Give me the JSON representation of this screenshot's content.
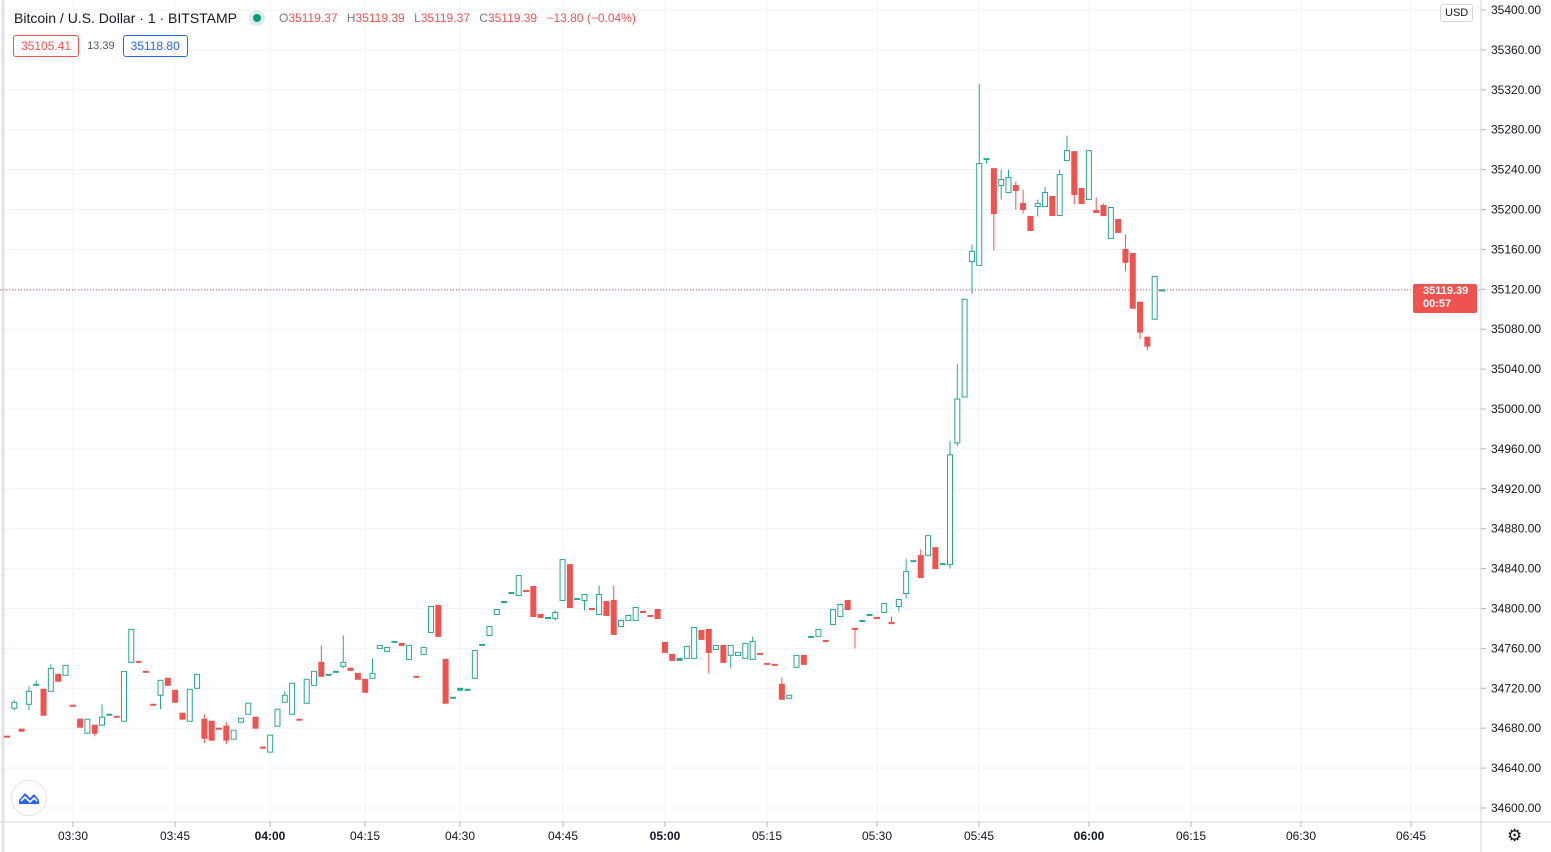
{
  "legend": {
    "symbol_title": "Bitcoin / U.S. Dollar · 1 · BITSTAMP",
    "open_label": "O",
    "open": "35119.37",
    "high_label": "H",
    "high": "35119.39",
    "low_label": "L",
    "low": "35119.37",
    "close_label": "C",
    "close": "35119.39",
    "change": "−13.80 (−0.04%)",
    "market_status": "open"
  },
  "trade": {
    "sell_price": "35105.41",
    "spread": "13.39",
    "buy_price": "35118.80"
  },
  "price_axis": {
    "currency": "USD",
    "last_price": "35119.39",
    "countdown": "00:57"
  },
  "colors": {
    "up": "#26a69a",
    "down": "#ef5350",
    "grid": "#f0f3fa",
    "ask": "#2962ff"
  },
  "icons": {
    "logo": "tradingview-cloud-icon",
    "settings": "gear-icon"
  },
  "chart_data": {
    "type": "candlestick",
    "title": "Bitcoin / U.S. Dollar · 1 · BITSTAMP",
    "ylim": [
      34580,
      35400
    ],
    "y_ticks": [
      "34600.00",
      "34640.00",
      "34680.00",
      "34720.00",
      "34760.00",
      "34800.00",
      "34840.00",
      "34880.00",
      "34920.00",
      "34960.00",
      "35000.00",
      "35040.00",
      "35080.00",
      "35120.00",
      "35160.00",
      "35200.00",
      "35240.00",
      "35280.00",
      "35320.00",
      "35360.00",
      "35400.00"
    ],
    "x_ticks": [
      {
        "label": "03:30",
        "bold": false
      },
      {
        "label": "03:45",
        "bold": false
      },
      {
        "label": "04:00",
        "bold": true
      },
      {
        "label": "04:15",
        "bold": false
      },
      {
        "label": "04:30",
        "bold": false
      },
      {
        "label": "04:45",
        "bold": false
      },
      {
        "label": "05:00",
        "bold": true
      },
      {
        "label": "05:15",
        "bold": false
      },
      {
        "label": "05:30",
        "bold": false
      },
      {
        "label": "05:45",
        "bold": false
      },
      {
        "label": "06:00",
        "bold": true
      },
      {
        "label": "06:15",
        "bold": false
      },
      {
        "label": "06:30",
        "bold": false
      },
      {
        "label": "06:45",
        "bold": false
      }
    ],
    "grid": true,
    "last_price_line": 35119.39,
    "ohlc": [
      [
        34672,
        34672,
        34671,
        34671
      ],
      [
        34700,
        34708,
        34698,
        34706
      ],
      [
        34679,
        34679,
        34677,
        34677
      ],
      [
        34704,
        34722,
        34698,
        34717
      ],
      [
        34723,
        34728,
        34723,
        34724
      ],
      [
        34719,
        34719,
        34693,
        34693
      ],
      [
        34717,
        34744,
        34717,
        34740
      ],
      [
        34734,
        34734,
        34727,
        34727
      ],
      [
        34733,
        34743,
        34733,
        34743
      ],
      [
        34703,
        34703,
        34702,
        34702
      ],
      [
        34689,
        34689,
        34681,
        34681
      ],
      [
        34675,
        34689,
        34675,
        34689
      ],
      [
        34683,
        34683,
        34672,
        34675
      ],
      [
        34683,
        34704,
        34683,
        34691
      ],
      [
        34693,
        34694,
        34693,
        34694
      ],
      [
        34692,
        34692,
        34691,
        34691
      ],
      [
        34687,
        34737,
        34687,
        34737
      ],
      [
        34746,
        34779,
        34746,
        34779
      ],
      [
        34747,
        34747,
        34746,
        34746
      ],
      [
        34737,
        34737,
        34736,
        34736
      ],
      [
        34704,
        34704,
        34703,
        34703
      ],
      [
        34713,
        34728,
        34699,
        34728
      ],
      [
        34730,
        34730,
        34723,
        34723
      ],
      [
        34718,
        34718,
        34706,
        34706
      ],
      [
        34695,
        34695,
        34689,
        34689
      ],
      [
        34687,
        34719,
        34687,
        34719
      ],
      [
        34720,
        34734,
        34720,
        34734
      ],
      [
        34689,
        34694,
        34665,
        34670
      ],
      [
        34687,
        34687,
        34668,
        34668
      ],
      [
        34680,
        34680,
        34679,
        34679
      ],
      [
        34682,
        34686,
        34664,
        34668
      ],
      [
        34669,
        34678,
        34669,
        34678
      ],
      [
        34686,
        34690,
        34686,
        34690
      ],
      [
        34694,
        34705,
        34694,
        34705
      ],
      [
        34691,
        34691,
        34680,
        34680
      ],
      [
        34661,
        34661,
        34660,
        34660
      ],
      [
        34656,
        34673,
        34656,
        34673
      ],
      [
        34682,
        34699,
        34682,
        34699
      ],
      [
        34706,
        34717,
        34706,
        34713
      ],
      [
        34694,
        34725,
        34694,
        34725
      ],
      [
        34689,
        34689,
        34688,
        34688
      ],
      [
        34705,
        34729,
        34705,
        34729
      ],
      [
        34723,
        34737,
        34723,
        34737
      ],
      [
        34746,
        34763,
        34732,
        34732
      ],
      [
        34733,
        34734,
        34733,
        34734
      ],
      [
        34736,
        34737,
        34736,
        34737
      ],
      [
        34742,
        34773,
        34740,
        34746
      ],
      [
        34740,
        34741,
        34738,
        34738
      ],
      [
        34735,
        34735,
        34729,
        34729
      ],
      [
        34729,
        34729,
        34716,
        34716
      ],
      [
        34730,
        34750,
        34730,
        34735
      ],
      [
        34760,
        34763,
        34760,
        34763
      ],
      [
        34757,
        34761,
        34757,
        34761
      ],
      [
        34766,
        34767,
        34766,
        34767
      ],
      [
        34765,
        34765,
        34763,
        34763
      ],
      [
        34749,
        34763,
        34749,
        34763
      ],
      [
        34732,
        34732,
        34731,
        34731
      ],
      [
        34754,
        34761,
        34754,
        34761
      ],
      [
        34776,
        34802,
        34776,
        34802
      ],
      [
        34803,
        34803,
        34772,
        34772
      ],
      [
        34749,
        34749,
        34705,
        34705
      ],
      [
        34710,
        34711,
        34710,
        34711
      ],
      [
        34718,
        34720,
        34718,
        34720
      ],
      [
        34718,
        34719,
        34718,
        34719
      ],
      [
        34730,
        34758,
        34730,
        34758
      ],
      [
        34763,
        34764,
        34763,
        34764
      ],
      [
        34773,
        34782,
        34773,
        34782
      ],
      [
        34794,
        34799,
        34794,
        34799
      ],
      [
        34806,
        34807,
        34806,
        34807
      ],
      [
        34815,
        34816,
        34815,
        34816
      ],
      [
        34813,
        34833,
        34813,
        34833
      ],
      [
        34818,
        34818,
        34817,
        34817
      ],
      [
        34822,
        34822,
        34792,
        34792
      ],
      [
        34794,
        34794,
        34791,
        34791
      ],
      [
        34790,
        34791,
        34790,
        34791
      ],
      [
        34790,
        34798,
        34788,
        34796
      ],
      [
        34808,
        34849,
        34808,
        34849
      ],
      [
        34844,
        34844,
        34801,
        34801
      ],
      [
        34809,
        34810,
        34809,
        34810
      ],
      [
        34808,
        34814,
        34798,
        34814
      ],
      [
        34800,
        34800,
        34799,
        34799
      ],
      [
        34794,
        34823,
        34794,
        34814
      ],
      [
        34807,
        34807,
        34793,
        34793
      ],
      [
        34808,
        34823,
        34774,
        34774
      ],
      [
        34782,
        34788,
        34782,
        34788
      ],
      [
        34788,
        34793,
        34788,
        34793
      ],
      [
        34788,
        34801,
        34788,
        34801
      ],
      [
        34797,
        34797,
        34796,
        34796
      ],
      [
        34793,
        34793,
        34792,
        34792
      ],
      [
        34799,
        34799,
        34790,
        34790
      ],
      [
        34766,
        34766,
        34756,
        34756
      ],
      [
        34754,
        34754,
        34748,
        34748
      ],
      [
        34748,
        34750,
        34748,
        34750
      ],
      [
        34750,
        34762,
        34750,
        34762
      ],
      [
        34750,
        34781,
        34750,
        34781
      ],
      [
        34778,
        34778,
        34769,
        34769
      ],
      [
        34779,
        34779,
        34735,
        34756
      ],
      [
        34759,
        34763,
        34759,
        34763
      ],
      [
        34763,
        34763,
        34746,
        34746
      ],
      [
        34753,
        34763,
        34740,
        34763
      ],
      [
        34753,
        34756,
        34753,
        34756
      ],
      [
        34750,
        34765,
        34750,
        34765
      ],
      [
        34749,
        34772,
        34749,
        34767
      ],
      [
        34755,
        34755,
        34754,
        34754
      ],
      [
        34745,
        34745,
        34744,
        34744
      ],
      [
        34744,
        34744,
        34743,
        34743
      ],
      [
        34724,
        34731,
        34709,
        34709
      ],
      [
        34710,
        34713,
        34710,
        34713
      ],
      [
        34741,
        34753,
        34741,
        34753
      ],
      [
        34753,
        34753,
        34744,
        34744
      ],
      [
        34771,
        34772,
        34771,
        34772
      ],
      [
        34772,
        34779,
        34772,
        34779
      ],
      [
        34768,
        34768,
        34767,
        34767
      ],
      [
        34784,
        34799,
        34784,
        34799
      ],
      [
        34792,
        34804,
        34792,
        34804
      ],
      [
        34808,
        34808,
        34799,
        34799
      ],
      [
        34780,
        34780,
        34760,
        34779
      ],
      [
        34787,
        34788,
        34787,
        34788
      ],
      [
        34793,
        34794,
        34793,
        34794
      ],
      [
        34791,
        34791,
        34790,
        34790
      ],
      [
        34796,
        34805,
        34796,
        34805
      ],
      [
        34786,
        34792,
        34784,
        34785
      ],
      [
        34802,
        34809,
        34797,
        34809
      ],
      [
        34815,
        34850,
        34810,
        34837
      ],
      [
        34847,
        34848,
        34847,
        34848
      ],
      [
        34853,
        34859,
        34831,
        34831
      ],
      [
        34853,
        34873,
        34853,
        34873
      ],
      [
        34861,
        34861,
        34840,
        34840
      ],
      [
        34844,
        34845,
        34844,
        34845
      ],
      [
        34844,
        34968,
        34840,
        34954
      ],
      [
        34966,
        35045,
        34963,
        35010
      ],
      [
        35012,
        35110,
        35012,
        35110
      ],
      [
        35148,
        35165,
        35115,
        35158
      ],
      [
        35144,
        35326,
        35144,
        35246
      ],
      [
        35250,
        35251,
        35246,
        35251
      ],
      [
        35241,
        35241,
        35159,
        35196
      ],
      [
        35224,
        35240,
        35210,
        35230
      ],
      [
        35217,
        35240,
        35217,
        35232
      ],
      [
        35224,
        35228,
        35200,
        35219
      ],
      [
        35206,
        35220,
        35196,
        35200
      ],
      [
        35193,
        35193,
        35179,
        35179
      ],
      [
        35203,
        35210,
        35193,
        35206
      ],
      [
        35203,
        35223,
        35203,
        35217
      ],
      [
        35213,
        35213,
        35194,
        35194
      ],
      [
        35194,
        35240,
        35194,
        35235
      ],
      [
        35249,
        35274,
        35249,
        35259
      ],
      [
        35258,
        35258,
        35205,
        35215
      ],
      [
        35221,
        35221,
        35206,
        35206
      ],
      [
        35210,
        35259,
        35210,
        35259
      ],
      [
        35199,
        35212,
        35197,
        35197
      ],
      [
        35204,
        35206,
        35194,
        35194
      ],
      [
        35171,
        35202,
        35171,
        35202
      ],
      [
        35190,
        35190,
        35177,
        35177
      ],
      [
        35160,
        35175,
        35138,
        35147
      ],
      [
        35156,
        35156,
        35101,
        35101
      ],
      [
        35107,
        35107,
        35070,
        35077
      ],
      [
        35072,
        35072,
        35059,
        35063
      ],
      [
        35090,
        35133,
        35090,
        35133
      ],
      [
        35119.37,
        35119.39,
        35119.37,
        35119.39
      ]
    ]
  }
}
